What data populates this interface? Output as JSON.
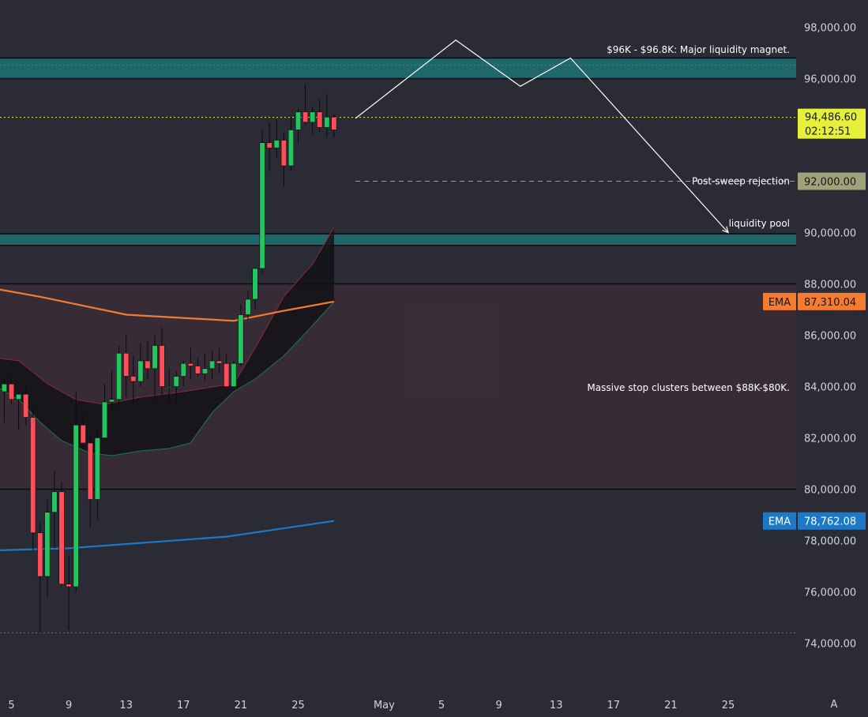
{
  "chart_data": {
    "type": "candlestick",
    "ylim": [
      73000,
      99000
    ],
    "y_ticks": [
      {
        "value": 98000,
        "label": "98,000.00"
      },
      {
        "value": 96000,
        "label": "96,000.00"
      },
      {
        "value": 90000,
        "label": "90,000.00"
      },
      {
        "value": 88000,
        "label": "88,000.00"
      },
      {
        "value": 86000,
        "label": "86,000.00"
      },
      {
        "value": 84000,
        "label": "84,000.00"
      },
      {
        "value": 82000,
        "label": "82,000.00"
      },
      {
        "value": 80000,
        "label": "80,000.00"
      },
      {
        "value": 78000,
        "label": "78,000.00"
      },
      {
        "value": 76000,
        "label": "76,000.00"
      },
      {
        "value": 74000,
        "label": "74,000.00"
      }
    ],
    "x_ticks": [
      {
        "day": 5,
        "label": "5"
      },
      {
        "day": 9,
        "label": "9"
      },
      {
        "day": 13,
        "label": "13"
      },
      {
        "day": 17,
        "label": "17"
      },
      {
        "day": 21,
        "label": "21"
      },
      {
        "day": 25,
        "label": "25"
      },
      {
        "day": 31,
        "label": "May"
      },
      {
        "day": 35,
        "label": "5"
      },
      {
        "day": 39,
        "label": "9"
      },
      {
        "day": 43,
        "label": "13"
      },
      {
        "day": 47,
        "label": "17"
      },
      {
        "day": 51,
        "label": "21"
      },
      {
        "day": 55,
        "label": "25"
      }
    ],
    "candles": [
      {
        "day": 4.0,
        "o": 83300,
        "h": 84500,
        "l": 82700,
        "c": 83800
      },
      {
        "day": 4.5,
        "o": 83800,
        "h": 84300,
        "l": 82600,
        "c": 84100
      },
      {
        "day": 5.0,
        "o": 84100,
        "h": 84400,
        "l": 83300,
        "c": 83500
      },
      {
        "day": 5.5,
        "o": 83500,
        "h": 83900,
        "l": 82300,
        "c": 83700
      },
      {
        "day": 6.0,
        "o": 83700,
        "h": 84000,
        "l": 82500,
        "c": 82800
      },
      {
        "day": 6.5,
        "o": 82800,
        "h": 83200,
        "l": 77600,
        "c": 78300
      },
      {
        "day": 7.0,
        "o": 78300,
        "h": 78700,
        "l": 74400,
        "c": 76600
      },
      {
        "day": 7.5,
        "o": 76600,
        "h": 79600,
        "l": 75800,
        "c": 79100
      },
      {
        "day": 8.0,
        "o": 79100,
        "h": 80700,
        "l": 77700,
        "c": 79900
      },
      {
        "day": 8.5,
        "o": 79900,
        "h": 80300,
        "l": 76200,
        "c": 76300
      },
      {
        "day": 9.0,
        "o": 76300,
        "h": 77400,
        "l": 74500,
        "c": 76200
      },
      {
        "day": 9.5,
        "o": 76200,
        "h": 83800,
        "l": 76000,
        "c": 82500
      },
      {
        "day": 10.0,
        "o": 82500,
        "h": 82900,
        "l": 81600,
        "c": 81800
      },
      {
        "day": 10.5,
        "o": 81800,
        "h": 82100,
        "l": 78500,
        "c": 79600
      },
      {
        "day": 11.0,
        "o": 79600,
        "h": 82300,
        "l": 78800,
        "c": 82000
      },
      {
        "day": 11.5,
        "o": 82000,
        "h": 84100,
        "l": 81900,
        "c": 83400
      },
      {
        "day": 12.0,
        "o": 83400,
        "h": 84600,
        "l": 83000,
        "c": 83500
      },
      {
        "day": 12.5,
        "o": 83500,
        "h": 85600,
        "l": 83200,
        "c": 85300
      },
      {
        "day": 13.0,
        "o": 85300,
        "h": 86000,
        "l": 83600,
        "c": 84400
      },
      {
        "day": 13.5,
        "o": 84400,
        "h": 85200,
        "l": 83300,
        "c": 84200
      },
      {
        "day": 14.0,
        "o": 84200,
        "h": 85700,
        "l": 84000,
        "c": 85000
      },
      {
        "day": 14.5,
        "o": 85000,
        "h": 85800,
        "l": 84300,
        "c": 84700
      },
      {
        "day": 15.0,
        "o": 84700,
        "h": 86000,
        "l": 83500,
        "c": 85600
      },
      {
        "day": 15.5,
        "o": 85600,
        "h": 86300,
        "l": 83600,
        "c": 84000
      },
      {
        "day": 16.0,
        "o": 84000,
        "h": 84700,
        "l": 83300,
        "c": 84000
      },
      {
        "day": 16.5,
        "o": 84000,
        "h": 84600,
        "l": 83400,
        "c": 84400
      },
      {
        "day": 17.0,
        "o": 84400,
        "h": 85000,
        "l": 84000,
        "c": 84900
      },
      {
        "day": 17.5,
        "o": 84900,
        "h": 85500,
        "l": 84300,
        "c": 84800
      },
      {
        "day": 18.0,
        "o": 84800,
        "h": 85100,
        "l": 84400,
        "c": 84500
      },
      {
        "day": 18.5,
        "o": 84500,
        "h": 85300,
        "l": 84200,
        "c": 84700
      },
      {
        "day": 19.0,
        "o": 84700,
        "h": 85400,
        "l": 84300,
        "c": 85000
      },
      {
        "day": 19.5,
        "o": 85000,
        "h": 85500,
        "l": 84500,
        "c": 84900
      },
      {
        "day": 20.0,
        "o": 84900,
        "h": 85300,
        "l": 83900,
        "c": 84000
      },
      {
        "day": 20.5,
        "o": 84000,
        "h": 85000,
        "l": 83900,
        "c": 84900
      },
      {
        "day": 21.0,
        "o": 84900,
        "h": 87200,
        "l": 84800,
        "c": 86800
      },
      {
        "day": 21.5,
        "o": 86800,
        "h": 87700,
        "l": 86600,
        "c": 87400
      },
      {
        "day": 22.0,
        "o": 87400,
        "h": 88600,
        "l": 87000,
        "c": 88600
      },
      {
        "day": 22.5,
        "o": 88600,
        "h": 94000,
        "l": 88400,
        "c": 93500
      },
      {
        "day": 23.0,
        "o": 93500,
        "h": 94300,
        "l": 92400,
        "c": 93300
      },
      {
        "day": 23.5,
        "o": 93300,
        "h": 94400,
        "l": 92900,
        "c": 93600
      },
      {
        "day": 24.0,
        "o": 93600,
        "h": 93900,
        "l": 91800,
        "c": 92600
      },
      {
        "day": 24.5,
        "o": 92600,
        "h": 94500,
        "l": 92400,
        "c": 94000
      },
      {
        "day": 25.0,
        "o": 94000,
        "h": 94800,
        "l": 93500,
        "c": 94700
      },
      {
        "day": 25.5,
        "o": 94700,
        "h": 95800,
        "l": 94200,
        "c": 94300
      },
      {
        "day": 26.0,
        "o": 94300,
        "h": 94900,
        "l": 93800,
        "c": 94700
      },
      {
        "day": 26.5,
        "o": 94700,
        "h": 95200,
        "l": 93900,
        "c": 94100
      },
      {
        "day": 27.0,
        "o": 94100,
        "h": 95400,
        "l": 93700,
        "c": 94500
      },
      {
        "day": 27.5,
        "o": 94500,
        "h": 94600,
        "l": 93700,
        "c": 94000
      }
    ],
    "ema_orange": [
      {
        "day": 3.0,
        "value": 87900
      },
      {
        "day": 7.0,
        "value": 87500
      },
      {
        "day": 13.0,
        "value": 86800
      },
      {
        "day": 20.5,
        "value": 86560
      },
      {
        "day": 24.0,
        "value": 86950
      },
      {
        "day": 27.5,
        "value": 87310
      }
    ],
    "ema_blue": [
      {
        "day": 3.0,
        "value": 77600
      },
      {
        "day": 9.0,
        "value": 77700
      },
      {
        "day": 20.0,
        "value": 78150
      },
      {
        "day": 27.5,
        "value": 78762
      }
    ],
    "cloud_top": [
      {
        "day": 3.0,
        "value": 85200
      },
      {
        "day": 5.5,
        "value": 85000
      },
      {
        "day": 7.5,
        "value": 84100
      },
      {
        "day": 9.5,
        "value": 83500
      },
      {
        "day": 11.5,
        "value": 83300
      },
      {
        "day": 14.0,
        "value": 83600
      },
      {
        "day": 17.0,
        "value": 83800
      },
      {
        "day": 19.0,
        "value": 84000
      },
      {
        "day": 20.5,
        "value": 84100
      },
      {
        "day": 22.0,
        "value": 85500
      },
      {
        "day": 24.0,
        "value": 87500
      },
      {
        "day": 26.0,
        "value": 88800
      },
      {
        "day": 27.5,
        "value": 90200
      }
    ],
    "cloud_bottom": [
      {
        "day": 27.5,
        "value": 87300
      },
      {
        "day": 26.0,
        "value": 86400
      },
      {
        "day": 24.0,
        "value": 85200
      },
      {
        "day": 22.0,
        "value": 84300
      },
      {
        "day": 20.5,
        "value": 83800
      },
      {
        "day": 19.0,
        "value": 83000
      },
      {
        "day": 17.5,
        "value": 81800
      },
      {
        "day": 16.0,
        "value": 81600
      },
      {
        "day": 14.0,
        "value": 81500
      },
      {
        "day": 12.0,
        "value": 81300
      },
      {
        "day": 10.5,
        "value": 81400
      },
      {
        "day": 8.5,
        "value": 81900
      },
      {
        "day": 7.0,
        "value": 82600
      },
      {
        "day": 5.5,
        "value": 83500
      },
      {
        "day": 4.0,
        "value": 84000
      },
      {
        "day": 3.0,
        "value": 84200
      }
    ],
    "zones": [
      {
        "name": "major-liquidity-zone",
        "from": 96000,
        "to": 96800,
        "color": "#1f6e72"
      },
      {
        "name": "liquidity-pool-zone",
        "from": 89500,
        "to": 89950,
        "color": "#1f6e72"
      },
      {
        "name": "stop-cluster-zone",
        "from": 80000,
        "to": 88000,
        "color": "#3a2c36"
      }
    ],
    "h_lines": [
      {
        "name": "current-price-line",
        "value": 94486.6,
        "color": "#e6f03c",
        "style": "dotted"
      },
      {
        "name": "rejection-line",
        "value": 92000,
        "color": "#a2a27a",
        "style": "dashed",
        "from_day": 29
      },
      {
        "name": "low-line",
        "value": 74400,
        "color": "#6b6d78",
        "style": "dotted"
      }
    ],
    "projection_path": [
      {
        "day": 29.0,
        "value": 94450
      },
      {
        "day": 36.0,
        "value": 97500
      },
      {
        "day": 40.5,
        "value": 95700
      },
      {
        "day": 44.0,
        "value": 96800
      },
      {
        "day": 55.0,
        "value": 90000
      }
    ],
    "annotations": [
      {
        "name": "major-liquidity-label",
        "text": "$96K - $96.8K: Major liquidity magnet.",
        "value": 97120
      },
      {
        "name": "post-sweep-label",
        "text": "Post-sweep rejection",
        "value": 92000
      },
      {
        "name": "liquidity-pool-label",
        "text": "liquidity pool",
        "value": 90350
      },
      {
        "name": "stop-cluster-label",
        "text": "Massive stop clusters between $88K-$80K.",
        "value": 83950
      }
    ],
    "price_tags": [
      {
        "name": "current-price-tag",
        "value": 94486.6,
        "label": "94,486.60",
        "sub_label": "02:12:51",
        "bg": "#e6f03c",
        "fg": "#131722"
      },
      {
        "name": "rejection-price-tag",
        "value": 92000,
        "label": "92,000.00",
        "bg": "#a2a27a",
        "fg": "#131722"
      },
      {
        "name": "ema-orange-tag",
        "value": 87310.04,
        "label": "87,310.04",
        "title": "EMA",
        "bg": "#f57b30",
        "fg": "#131722"
      },
      {
        "name": "ema-blue-tag",
        "value": 78762.08,
        "label": "78,762.08",
        "title": "EMA",
        "bg": "#1e78c8",
        "fg": "#ffffff"
      }
    ],
    "colors": {
      "background": "#2a2b35",
      "up": "#22c55e",
      "down": "#ff4d5a",
      "ema_orange": "#f57b30",
      "ema_blue": "#1e78c8",
      "projection": "#ffffff"
    },
    "corner_mark": "A"
  }
}
